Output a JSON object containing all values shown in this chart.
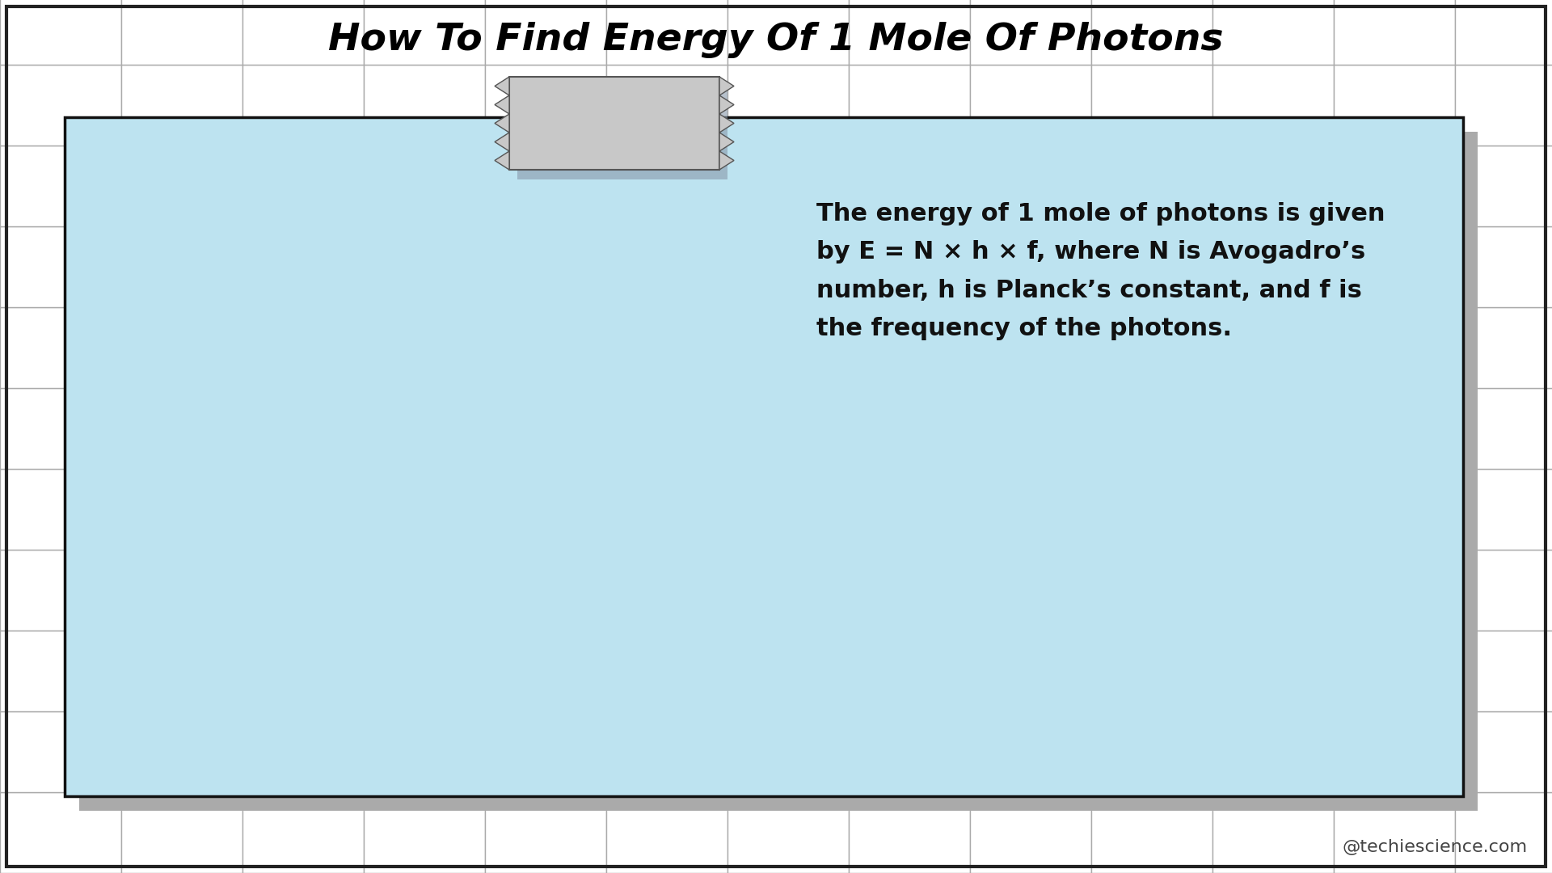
{
  "title": "How To Find Energy Of 1 Mole Of Photons",
  "title_fontsize": 34,
  "title_fontweight": "bold",
  "title_fontstyle": "italic",
  "body_text": "The energy of 1 mole of photons is given\nby E = N × h × f, where N is Avogadro’s\nnumber, h is Planck’s constant, and f is\nthe frequency of the photons.",
  "body_fontsize": 22,
  "watermark": "@techiescience.com",
  "watermark_fontsize": 16,
  "background_color": "#ffffff",
  "outer_border_color": "#222222",
  "tile_color": "#ffffff",
  "tile_line_color": "#aaaaaa",
  "card_bg_color": "#bde3f0",
  "card_border_color": "#111111",
  "card_shadow_color": "#aaaaaa",
  "tape_color": "#c8c8c8",
  "tape_border_color": "#555555",
  "tape_shadow_color": "#8899aa"
}
